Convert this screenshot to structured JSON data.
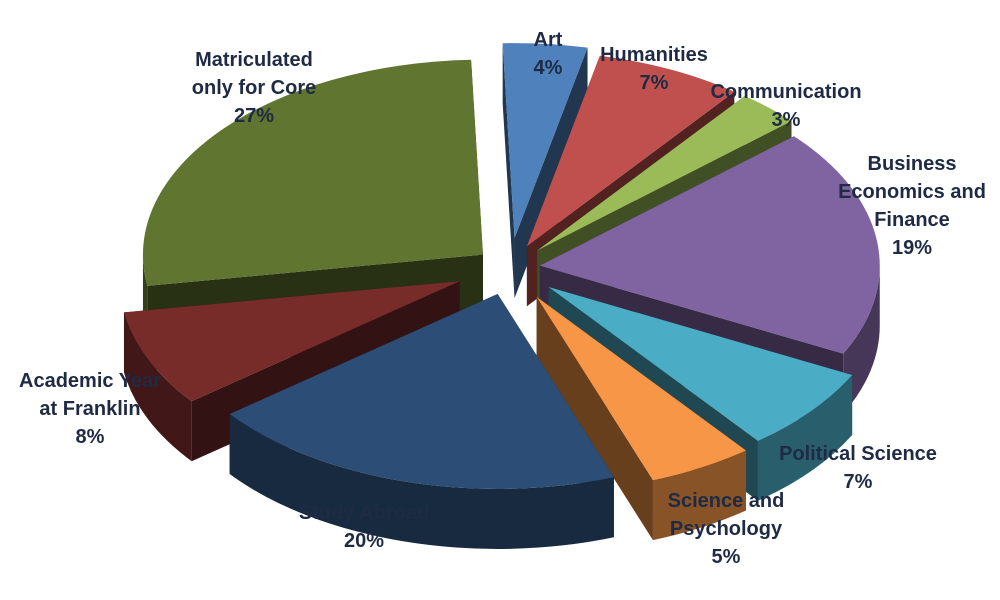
{
  "chart_data": {
    "type": "pie",
    "title": "",
    "slices": [
      {
        "label_lines": [
          "Art"
        ],
        "value": 4,
        "display": "4%",
        "color": "#4f81bd"
      },
      {
        "label_lines": [
          "Humanities"
        ],
        "value": 7,
        "display": "7%",
        "color": "#c0504d"
      },
      {
        "label_lines": [
          "Communication"
        ],
        "value": 3,
        "display": "3%",
        "color": "#9bbb59"
      },
      {
        "label_lines": [
          "Business",
          "Economics and",
          "Finance"
        ],
        "value": 19,
        "display": "19%",
        "color": "#8064a2"
      },
      {
        "label_lines": [
          "Political Science"
        ],
        "value": 7,
        "display": "7%",
        "color": "#4bacc6"
      },
      {
        "label_lines": [
          "Science and",
          "Psychology"
        ],
        "value": 5,
        "display": "5%",
        "color": "#f79646"
      },
      {
        "label_lines": [
          "Study Abroad"
        ],
        "value": 20,
        "display": "20%",
        "color": "#2c4d75"
      },
      {
        "label_lines": [
          "Academic Year",
          "at Franklin"
        ],
        "value": 8,
        "display": "8%",
        "color": "#772c2a"
      },
      {
        "label_lines": [
          "Matriculated",
          "only for Core"
        ],
        "value": 27,
        "display": "27%",
        "color": "#5f7530"
      }
    ],
    "legend": "none",
    "style": "3d-exploded"
  }
}
